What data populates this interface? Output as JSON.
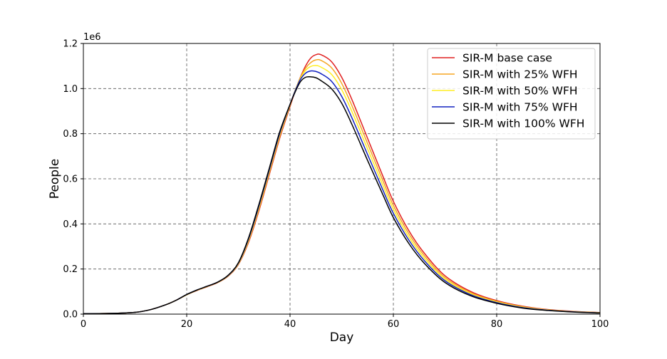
{
  "chart_data": {
    "type": "line",
    "xlabel": "Day",
    "ylabel": "People",
    "y_offset_label": "1e6",
    "xlim": [
      0,
      100
    ],
    "ylim": [
      0,
      1200000
    ],
    "x_ticks": [
      0,
      20,
      40,
      60,
      80,
      100
    ],
    "x_tick_labels": [
      "0",
      "20",
      "40",
      "60",
      "80",
      "100"
    ],
    "y_ticks": [
      0,
      200000,
      400000,
      600000,
      800000,
      1000000,
      1200000
    ],
    "y_tick_labels": [
      "0.0",
      "0.2",
      "0.4",
      "0.6",
      "0.8",
      "1.0",
      "1.2"
    ],
    "grid": true,
    "legend_position": "top-right",
    "x": [
      0,
      5,
      10,
      13,
      16,
      18,
      20,
      22,
      24,
      26,
      28,
      30,
      32,
      34,
      36,
      38,
      40,
      41,
      42,
      43,
      44,
      45,
      46,
      48,
      50,
      52,
      55,
      58,
      60,
      63,
      66,
      70,
      75,
      80,
      85,
      90,
      95,
      100
    ],
    "series": [
      {
        "name": "SIR-M base case",
        "color": "#e02020",
        "values": [
          2000,
          3000,
          8000,
          20000,
          42000,
          62000,
          86000,
          105000,
          122000,
          140000,
          168000,
          220000,
          320000,
          460000,
          620000,
          780000,
          920000,
          990000,
          1050000,
          1100000,
          1135000,
          1150000,
          1150000,
          1120000,
          1050000,
          950000,
          780000,
          610000,
          500000,
          370000,
          270000,
          170000,
          100000,
          60000,
          35000,
          20000,
          12000,
          7000
        ]
      },
      {
        "name": "SIR-M with 25% WFH",
        "color": "#f5a623",
        "values": [
          2000,
          3000,
          8000,
          20000,
          42000,
          62000,
          86000,
          106000,
          123000,
          141000,
          169000,
          222000,
          325000,
          467000,
          627000,
          787000,
          925000,
          992000,
          1048000,
          1090000,
          1115000,
          1127000,
          1125000,
          1093000,
          1023000,
          923000,
          757000,
          590000,
          482000,
          356000,
          259000,
          162000,
          95000,
          57000,
          33000,
          19000,
          11000,
          6500
        ]
      },
      {
        "name": "SIR-M with 50% WFH",
        "color": "#ffee22",
        "values": [
          2000,
          3000,
          8000,
          20000,
          42000,
          62000,
          86000,
          106000,
          123000,
          141000,
          170000,
          224000,
          330000,
          474000,
          634000,
          794000,
          928000,
          992000,
          1045000,
          1080000,
          1098000,
          1102000,
          1095000,
          1064000,
          995000,
          897000,
          733000,
          570000,
          465000,
          342000,
          248000,
          155000,
          90000,
          54000,
          31000,
          18000,
          10500,
          6000
        ]
      },
      {
        "name": "SIR-M with 75% WFH",
        "color": "#1020c0",
        "values": [
          2000,
          3000,
          8000,
          20000,
          42000,
          62000,
          87000,
          107000,
          124000,
          142000,
          171000,
          226000,
          335000,
          481000,
          641000,
          801000,
          930000,
          990000,
          1040000,
          1068000,
          1078000,
          1076000,
          1066000,
          1033000,
          965000,
          869000,
          708000,
          549000,
          447000,
          328000,
          237000,
          148000,
          86000,
          51000,
          29000,
          17000,
          10000,
          5500
        ]
      },
      {
        "name": "SIR-M with 100% WFH",
        "color": "#000000",
        "values": [
          2000,
          3000,
          8000,
          20000,
          42000,
          62000,
          87000,
          107000,
          124000,
          142000,
          172000,
          228000,
          340000,
          488000,
          648000,
          808000,
          930000,
          985000,
          1030000,
          1050000,
          1052000,
          1048000,
          1035000,
          1000000,
          935000,
          840000,
          682000,
          528000,
          428000,
          313000,
          225000,
          140000,
          81000,
          48000,
          27000,
          16000,
          9000,
          5000
        ]
      }
    ]
  }
}
